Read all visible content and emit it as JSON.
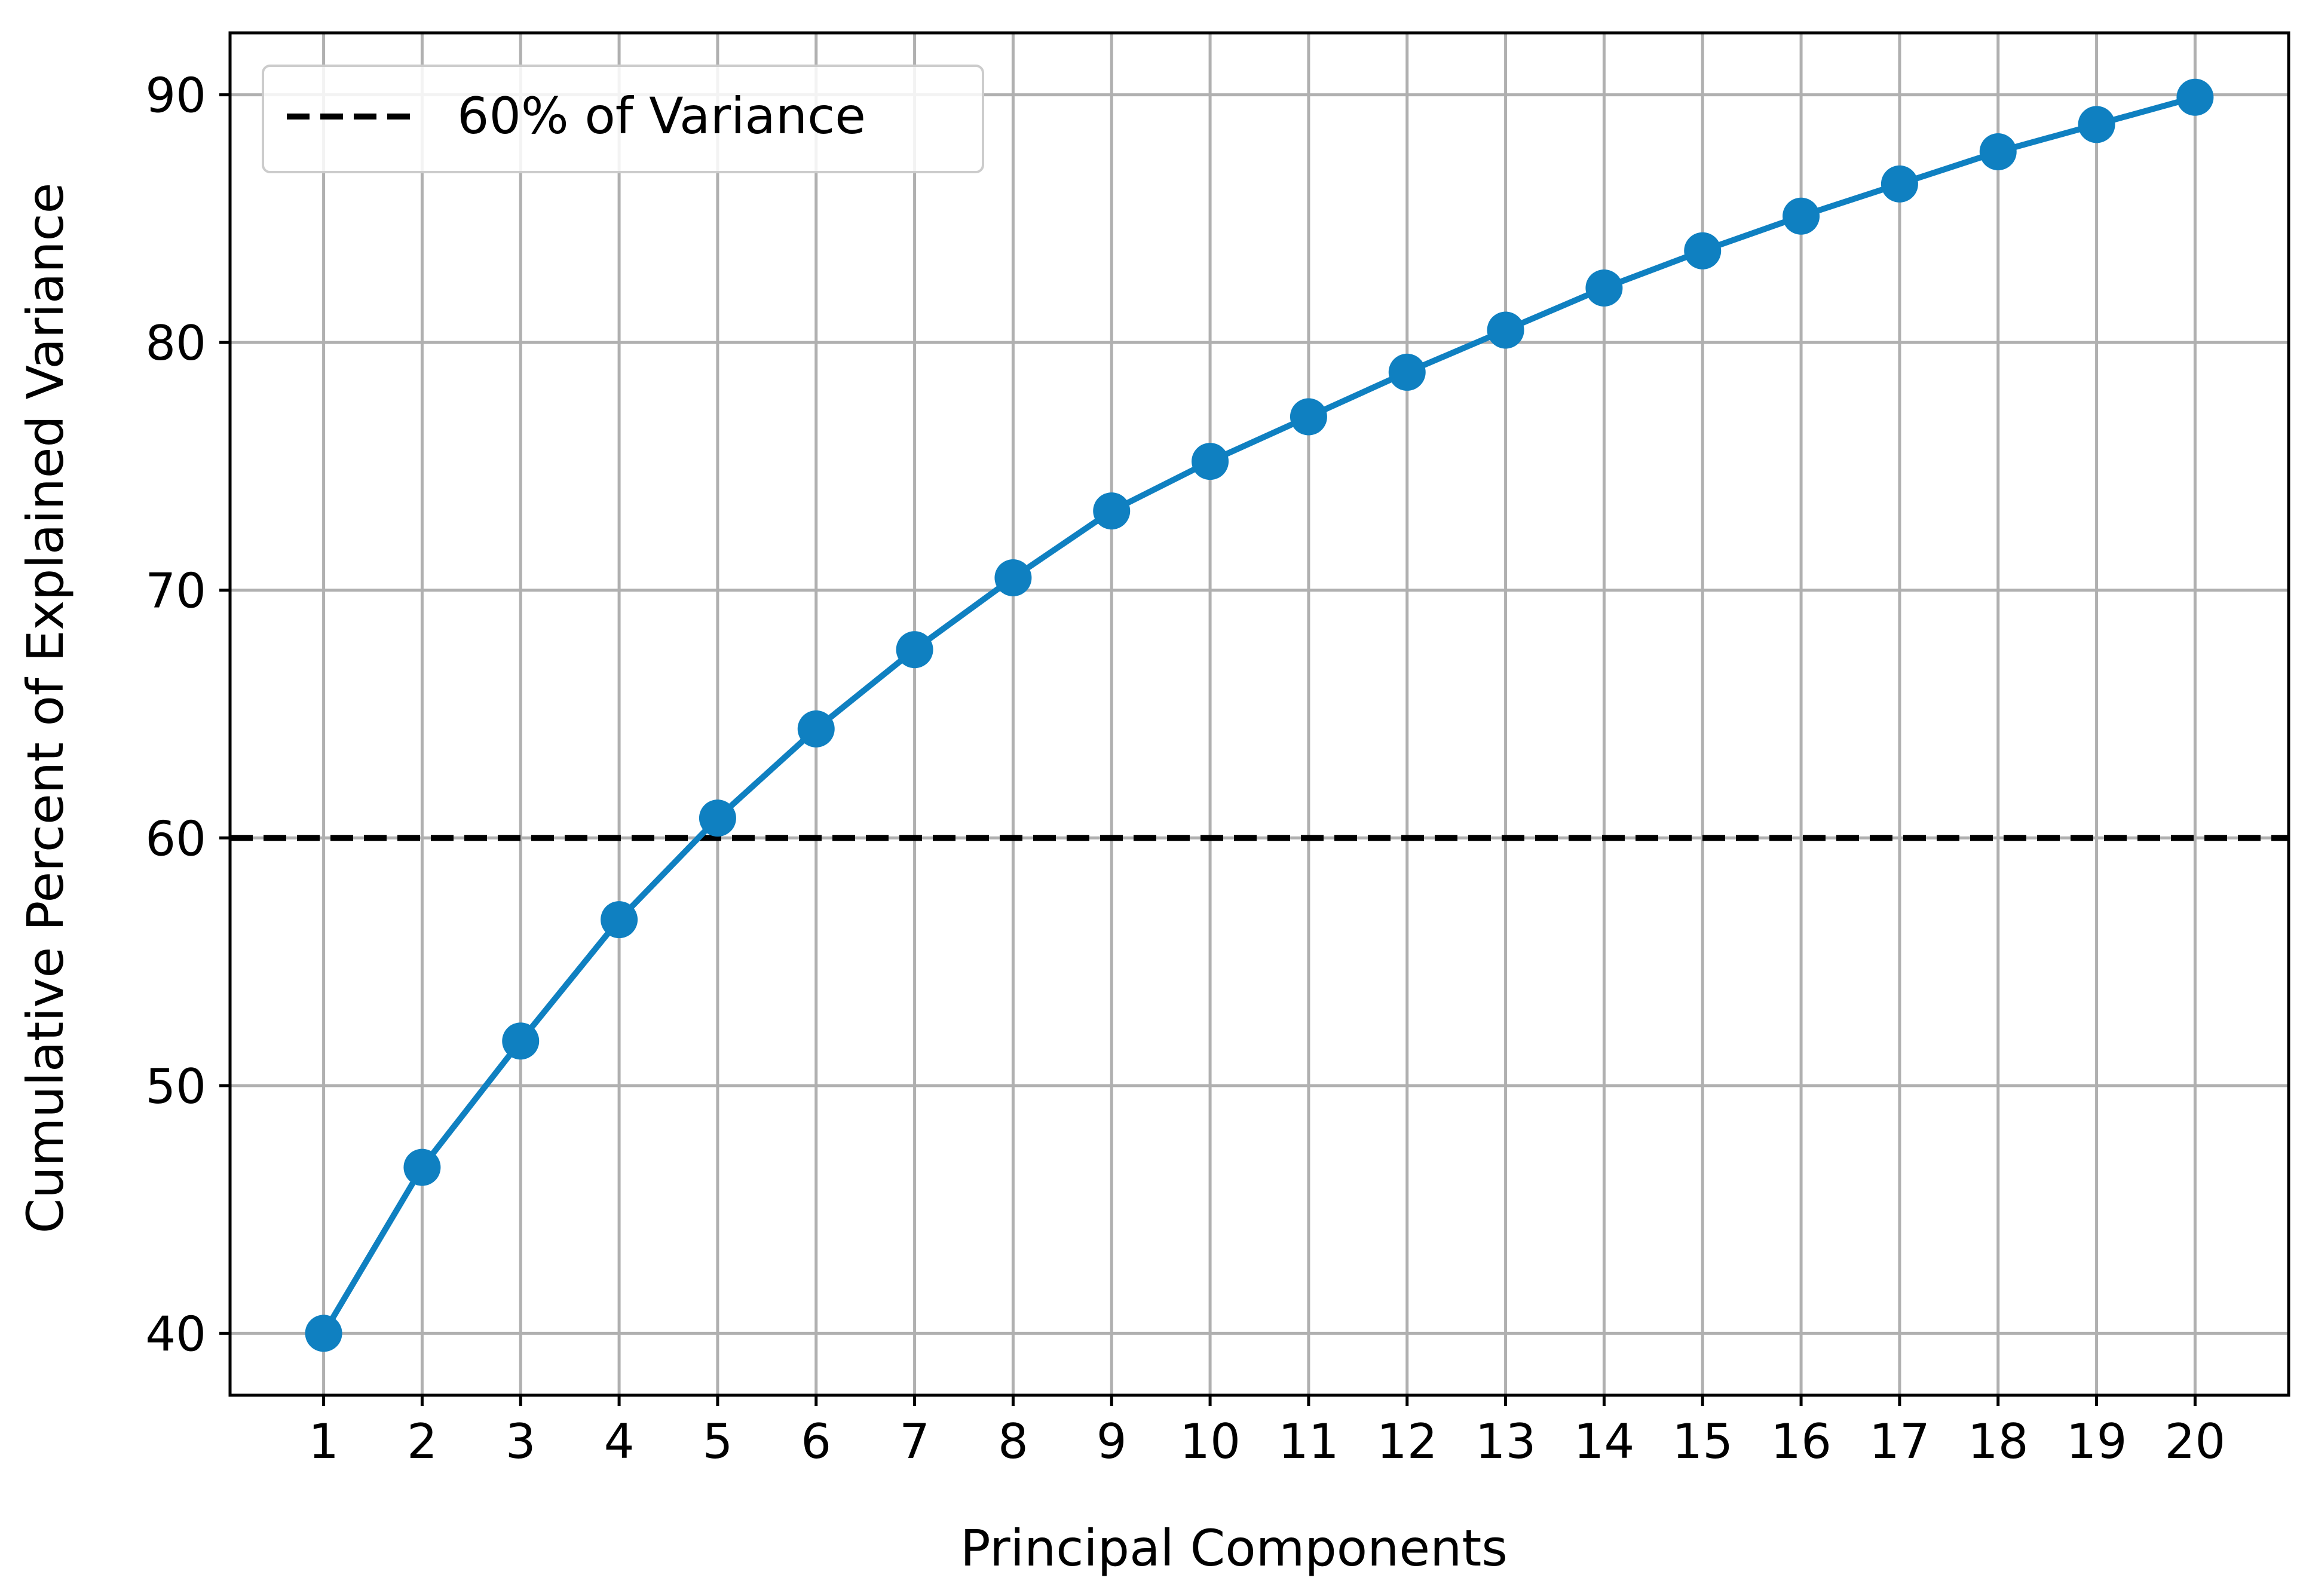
{
  "chart_data": {
    "type": "line",
    "title": "",
    "xlabel": "Principal Components",
    "ylabel": "Cumulative Percent of Explained Variance",
    "x": [
      1,
      2,
      3,
      4,
      5,
      6,
      7,
      8,
      9,
      10,
      11,
      12,
      13,
      14,
      15,
      16,
      17,
      18,
      19,
      20
    ],
    "x_tick_labels": [
      "1",
      "2",
      "3",
      "4",
      "5",
      "6",
      "7",
      "8",
      "9",
      "10",
      "11",
      "12",
      "13",
      "14",
      "15",
      "16",
      "17",
      "18",
      "19",
      "20"
    ],
    "series": [
      {
        "values": [
          40.0,
          46.7,
          51.8,
          56.7,
          60.8,
          64.4,
          67.6,
          70.5,
          73.2,
          75.2,
          77.0,
          78.8,
          80.5,
          82.2,
          83.7,
          85.1,
          86.4,
          87.7,
          88.8,
          89.9
        ],
        "color": "#0f80c1",
        "marker": "circle"
      }
    ],
    "reference_line": {
      "y": 60,
      "label": "60% of Variance",
      "color": "#000000",
      "style": "dashed"
    },
    "xlim": [
      0.05,
      20.95
    ],
    "ylim": [
      37.5,
      92.5
    ],
    "y_ticks": [
      40,
      50,
      60,
      70,
      80,
      90
    ],
    "grid": true,
    "legend_position": "upper-left"
  }
}
